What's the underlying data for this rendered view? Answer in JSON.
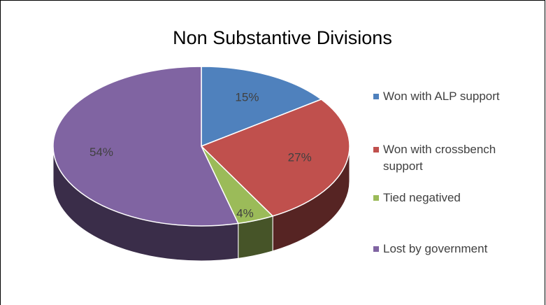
{
  "chart_data": {
    "type": "pie",
    "title": "Non Substantive Divisions",
    "categories": [
      "Won with ALP support",
      "Won with crossbench support",
      "Tied negatived",
      "Lost by government"
    ],
    "values": [
      15,
      27,
      4,
      54
    ],
    "value_labels": [
      "15%",
      "27%",
      "4%",
      "54%"
    ],
    "colors": [
      "#4f81bd",
      "#c0504d",
      "#9bbb59",
      "#8064a2"
    ],
    "legend": "right"
  }
}
